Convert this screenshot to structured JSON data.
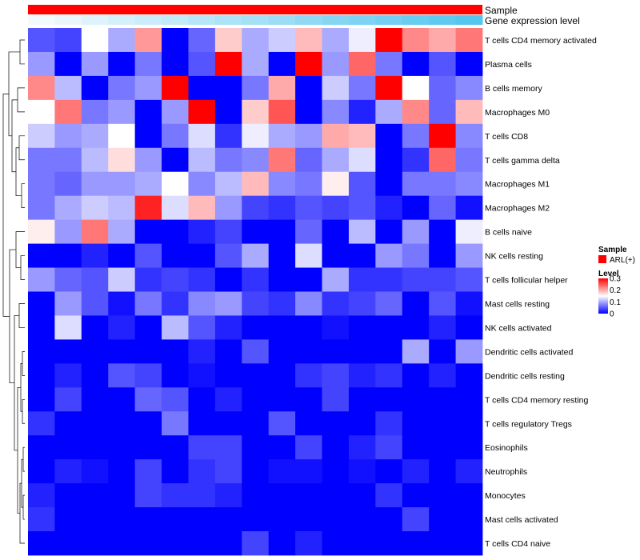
{
  "chart_data": {
    "type": "heatmap",
    "title": "",
    "rows": [
      "T cells CD4 memory activated",
      "Plasma cells",
      "B cells memory",
      "Macrophages M0",
      "T cells CD8",
      "T cells gamma delta",
      "Macrophages M1",
      "Macrophages M2",
      "B cells naive",
      "NK cells resting",
      "T cells follicular helper",
      "Mast cells resting",
      "NK cells activated",
      "Dendritic cells activated",
      "Dendritic cells resting",
      "T cells CD4 memory resting",
      "T cells regulatory  Tregs",
      "Eosinophils",
      "Neutrophils",
      "Monocytes",
      "Mast cells activated",
      "T cells CD4 naive"
    ],
    "n_columns": 17,
    "values": [
      [
        0.05,
        0.04,
        0.15,
        0.1,
        0.21,
        0.0,
        0.06,
        0.18,
        0.1,
        0.12,
        0.19,
        0.1,
        0.14,
        0.3,
        0.22,
        0.2,
        0.23
      ],
      [
        0.09,
        0.0,
        0.09,
        0.0,
        0.07,
        0.0,
        0.05,
        0.3,
        0.1,
        0.0,
        0.3,
        0.09,
        0.24,
        0.07,
        0.0,
        0.05,
        0.0
      ],
      [
        0.22,
        0.11,
        0.0,
        0.07,
        0.09,
        0.3,
        0.0,
        0.0,
        0.07,
        0.2,
        0.0,
        0.12,
        0.07,
        0.3,
        0.15,
        0.06,
        0.08
      ],
      [
        0.15,
        0.23,
        0.07,
        0.09,
        0.0,
        0.09,
        0.3,
        0.0,
        0.18,
        0.25,
        0.0,
        0.08,
        0.02,
        0.1,
        0.22,
        0.06,
        0.19
      ],
      [
        0.12,
        0.09,
        0.1,
        0.15,
        0.0,
        0.07,
        0.13,
        0.03,
        0.14,
        0.1,
        0.09,
        0.2,
        0.19,
        0.0,
        0.07,
        0.3,
        0.08
      ],
      [
        0.07,
        0.07,
        0.11,
        0.17,
        0.09,
        0.0,
        0.11,
        0.07,
        0.08,
        0.23,
        0.06,
        0.1,
        0.13,
        0.0,
        0.03,
        0.24,
        0.07
      ],
      [
        0.07,
        0.06,
        0.09,
        0.09,
        0.1,
        0.15,
        0.08,
        0.11,
        0.19,
        0.08,
        0.07,
        0.16,
        0.05,
        0.0,
        0.07,
        0.07,
        0.08
      ],
      [
        0.07,
        0.1,
        0.12,
        0.11,
        0.28,
        0.13,
        0.19,
        0.09,
        0.04,
        0.03,
        0.05,
        0.04,
        0.05,
        0.02,
        0.0,
        0.06,
        0.01
      ],
      [
        0.16,
        0.09,
        0.23,
        0.1,
        0.0,
        0.0,
        0.02,
        0.04,
        0.0,
        0.0,
        0.06,
        0.0,
        0.11,
        0.0,
        0.09,
        0.0,
        0.14
      ],
      [
        0.0,
        0.0,
        0.02,
        0.0,
        0.05,
        0.0,
        0.0,
        0.05,
        0.1,
        0.0,
        0.13,
        0.0,
        0.0,
        0.09,
        0.07,
        0.0,
        0.09
      ],
      [
        0.09,
        0.06,
        0.05,
        0.12,
        0.03,
        0.04,
        0.03,
        0.0,
        0.03,
        0.0,
        0.0,
        0.1,
        0.03,
        0.03,
        0.04,
        0.04,
        0.05
      ],
      [
        0.0,
        0.09,
        0.05,
        0.01,
        0.07,
        0.03,
        0.08,
        0.09,
        0.04,
        0.03,
        0.08,
        0.03,
        0.04,
        0.06,
        0.0,
        0.05,
        0.01
      ],
      [
        0.0,
        0.13,
        0.0,
        0.02,
        0.0,
        0.11,
        0.05,
        0.02,
        0.0,
        0.0,
        0.0,
        0.01,
        0.0,
        0.0,
        0.0,
        0.02,
        0.0
      ],
      [
        0.0,
        0.0,
        0.0,
        0.0,
        0.0,
        0.0,
        0.02,
        0.0,
        0.05,
        0.0,
        0.0,
        0.0,
        0.0,
        0.0,
        0.1,
        0.0,
        0.09
      ],
      [
        0.0,
        0.02,
        0.0,
        0.05,
        0.04,
        0.0,
        0.01,
        0.0,
        0.0,
        0.0,
        0.03,
        0.04,
        0.02,
        0.03,
        0.0,
        0.02,
        0.0
      ],
      [
        0.0,
        0.04,
        0.0,
        0.0,
        0.06,
        0.05,
        0.0,
        0.02,
        0.0,
        0.0,
        0.0,
        0.04,
        0.0,
        0.0,
        0.0,
        0.0,
        0.0
      ],
      [
        0.03,
        0.0,
        0.0,
        0.0,
        0.0,
        0.07,
        0.0,
        0.0,
        0.0,
        0.05,
        0.0,
        0.0,
        0.0,
        0.03,
        0.0,
        0.0,
        0.0
      ],
      [
        0.0,
        0.0,
        0.0,
        0.0,
        0.0,
        0.0,
        0.04,
        0.04,
        0.0,
        0.0,
        0.04,
        0.0,
        0.02,
        0.04,
        0.0,
        0.0,
        0.0
      ],
      [
        0.0,
        0.02,
        0.01,
        0.0,
        0.04,
        0.0,
        0.03,
        0.04,
        0.0,
        0.01,
        0.01,
        0.0,
        0.01,
        0.0,
        0.02,
        0.0,
        0.02
      ],
      [
        0.02,
        0.0,
        0.0,
        0.0,
        0.04,
        0.03,
        0.03,
        0.02,
        0.0,
        0.0,
        0.0,
        0.0,
        0.0,
        0.03,
        0.0,
        0.0,
        0.0
      ],
      [
        0.03,
        0.0,
        0.0,
        0.0,
        0.0,
        0.0,
        0.0,
        0.0,
        0.0,
        0.0,
        0.0,
        0.0,
        0.0,
        0.0,
        0.04,
        0.0,
        0.0
      ],
      [
        0.0,
        0.0,
        0.0,
        0.0,
        0.0,
        0.0,
        0.0,
        0.0,
        0.04,
        0.0,
        0.02,
        0.0,
        0.0,
        0.0,
        0.0,
        0.0,
        0.0
      ]
    ],
    "annotations": {
      "sample": {
        "label": "Sample",
        "color": "#ff0000"
      },
      "gene_expression": {
        "label": "Gene expression level",
        "values": [
          0.0,
          0.06,
          0.13,
          0.19,
          0.25,
          0.31,
          0.38,
          0.44,
          0.5,
          0.56,
          0.63,
          0.69,
          0.75,
          0.81,
          0.88,
          0.94,
          1.0
        ],
        "color_low": "#f2fafd",
        "color_high": "#56c6ef"
      }
    },
    "legend": {
      "sample_title": "Sample",
      "sample_items": [
        {
          "label": "ARL(+)",
          "color": "#ff0000"
        }
      ],
      "level_title": "Level",
      "level_ticks": [
        {
          "value": 0.3,
          "label": "0.3"
        },
        {
          "value": 0.2,
          "label": "0.2"
        },
        {
          "value": 0.1,
          "label": "0.1"
        },
        {
          "value": 0.0,
          "label": "0"
        }
      ],
      "range": [
        0,
        0.3
      ]
    },
    "colors": {
      "low": "#0000ff",
      "mid": "#ffffff",
      "high": "#ff0000"
    },
    "dendrogram": "rows"
  }
}
